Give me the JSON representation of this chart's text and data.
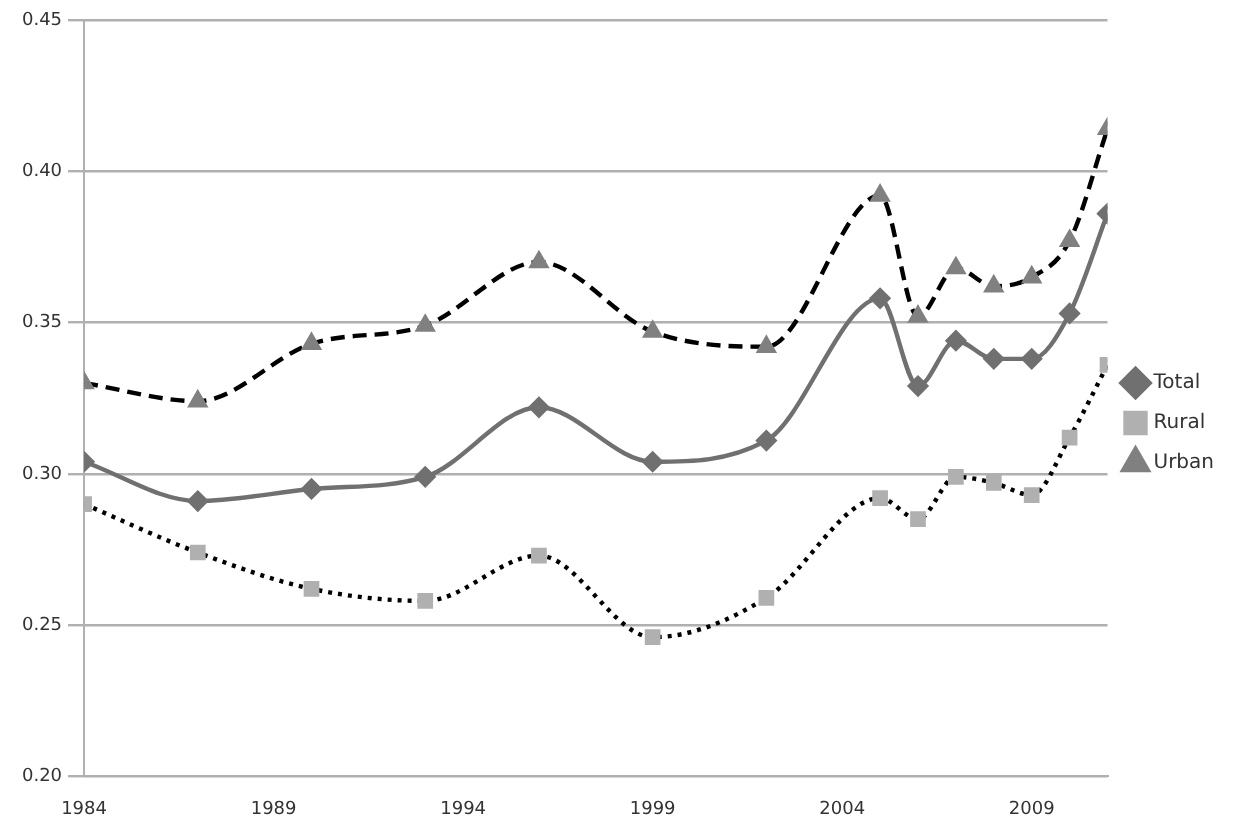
{
  "chart_data": {
    "type": "line",
    "x": [
      1984,
      1987,
      1990,
      1993,
      1996,
      1999,
      2002,
      2005,
      2006,
      2007,
      2008,
      2009,
      2010,
      2011
    ],
    "series": [
      {
        "name": "Total",
        "color": "#707070",
        "marker": "diamond",
        "line_style": "solid",
        "values": [
          0.304,
          0.291,
          0.295,
          0.299,
          0.322,
          0.304,
          0.311,
          0.358,
          0.329,
          0.344,
          0.338,
          0.338,
          0.353,
          0.386
        ]
      },
      {
        "name": "Rural",
        "color": "#000000",
        "marker": "square",
        "line_style": "dotted",
        "values": [
          0.29,
          0.274,
          0.262,
          0.258,
          0.273,
          0.246,
          0.259,
          0.292,
          0.285,
          0.299,
          0.297,
          0.293,
          0.312,
          0.336
        ]
      },
      {
        "name": "Urban",
        "color": "#000000",
        "marker": "triangle",
        "line_style": "dashed",
        "values": [
          0.33,
          0.324,
          0.343,
          0.349,
          0.37,
          0.347,
          0.342,
          0.392,
          0.352,
          0.368,
          0.362,
          0.365,
          0.377,
          0.414
        ]
      }
    ],
    "xlim": [
      1984,
      2011
    ],
    "xticks": [
      1984,
      1989,
      1994,
      1999,
      2004,
      2009
    ],
    "ylim": [
      0.2,
      0.45
    ],
    "yticks": [
      {
        "value": 0.2,
        "label": "0.20"
      },
      {
        "value": 0.25,
        "label": "0.25"
      },
      {
        "value": 0.3,
        "label": "0.30"
      },
      {
        "value": 0.35,
        "label": "0.35"
      },
      {
        "value": 0.4,
        "label": "0.40"
      },
      {
        "value": 0.45,
        "label": "0.45"
      }
    ],
    "grid": "y",
    "legend": "right"
  }
}
